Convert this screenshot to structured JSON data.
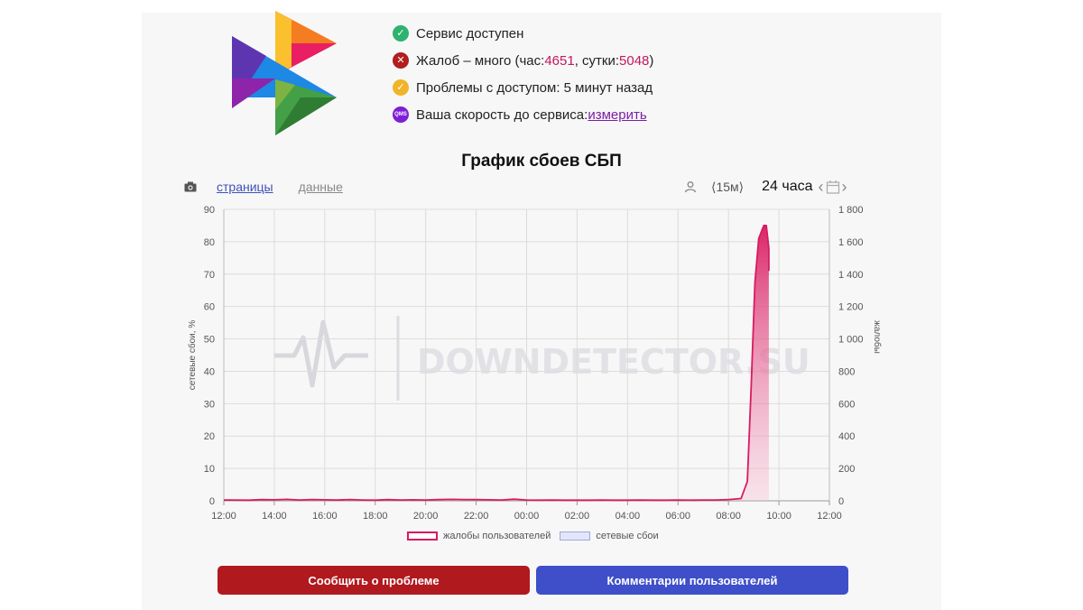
{
  "status": {
    "service_available": "Сервис доступен",
    "complaints_prefix": "Жалоб – много (час: ",
    "complaints_hour": "4651",
    "complaints_mid": ", сутки: ",
    "complaints_day": "5048",
    "complaints_suffix": ")",
    "access_problems": "Проблемы с доступом: 5 минут назад",
    "speed_prefix": "Ваша скорость до сервиса: ",
    "speed_link": "измерить",
    "qms_badge": "QMS"
  },
  "toolbar": {
    "tab_pages": "страницы",
    "tab_data": "данные",
    "interval": "⟨15м⟩",
    "range": "24 часа",
    "prev": "‹",
    "next": "›"
  },
  "watermark": "DOWNDETECTOR.SU",
  "buttons": {
    "report": "Сообщить о проблеме",
    "comments": "Комментарии пользователей"
  },
  "colors": {
    "complaints": "#d81b60",
    "outages": "#9fa8da",
    "report_button": "#b0191e",
    "comments_button": "#3f4fc9"
  },
  "chart_data": {
    "type": "area",
    "title": "График сбоев СБП",
    "y_left_label": "сетевые сбои, %",
    "y_right_label": "жалобы",
    "y_left_ticks": [
      "0",
      "10",
      "20",
      "30",
      "40",
      "50",
      "60",
      "70",
      "80",
      "90"
    ],
    "y_right_ticks": [
      "0",
      "200",
      "400",
      "600",
      "800",
      "1 000",
      "1 200",
      "1 400",
      "1 600",
      "1 800"
    ],
    "y_left_range": [
      0,
      90
    ],
    "y_right_range": [
      0,
      1800
    ],
    "x_ticks": [
      "12:00",
      "14:00",
      "16:00",
      "18:00",
      "20:00",
      "22:00",
      "00:00",
      "02:00",
      "04:00",
      "06:00",
      "08:00",
      "10:00",
      "12:00"
    ],
    "x_range_hours": [
      0,
      24
    ],
    "grid": true,
    "legend_position": "bottom",
    "series": [
      {
        "name": "жалобы пользователей",
        "axis": "right",
        "points": [
          [
            0,
            5
          ],
          [
            1,
            4
          ],
          [
            1.5,
            7
          ],
          [
            2,
            6
          ],
          [
            2.5,
            9
          ],
          [
            3,
            5
          ],
          [
            3.5,
            8
          ],
          [
            4,
            6
          ],
          [
            4.5,
            5
          ],
          [
            5,
            8
          ],
          [
            5.5,
            5
          ],
          [
            6,
            4
          ],
          [
            6.5,
            7
          ],
          [
            7,
            5
          ],
          [
            7.5,
            6
          ],
          [
            8,
            5
          ],
          [
            8.5,
            7
          ],
          [
            9,
            9
          ],
          [
            9.5,
            8
          ],
          [
            10,
            7
          ],
          [
            10.5,
            6
          ],
          [
            11,
            5
          ],
          [
            11.5,
            10
          ],
          [
            12,
            5
          ],
          [
            12.5,
            4
          ],
          [
            13,
            5
          ],
          [
            13.5,
            4
          ],
          [
            14,
            4
          ],
          [
            14.5,
            4
          ],
          [
            15,
            5
          ],
          [
            15.5,
            4
          ],
          [
            16,
            4
          ],
          [
            16.5,
            5
          ],
          [
            17,
            4
          ],
          [
            17.5,
            4
          ],
          [
            18,
            5
          ],
          [
            18.5,
            4
          ],
          [
            19,
            5
          ],
          [
            19.5,
            5
          ],
          [
            20,
            8
          ],
          [
            20.5,
            14
          ],
          [
            20.75,
            120
          ],
          [
            20.9,
            700
          ],
          [
            21.05,
            1350
          ],
          [
            21.2,
            1620
          ],
          [
            21.4,
            1700
          ],
          [
            21.5,
            1700
          ],
          [
            21.6,
            1560
          ],
          [
            21.6,
            1420
          ]
        ]
      },
      {
        "name": "сетевые сбои",
        "axis": "left",
        "points": []
      }
    ]
  }
}
